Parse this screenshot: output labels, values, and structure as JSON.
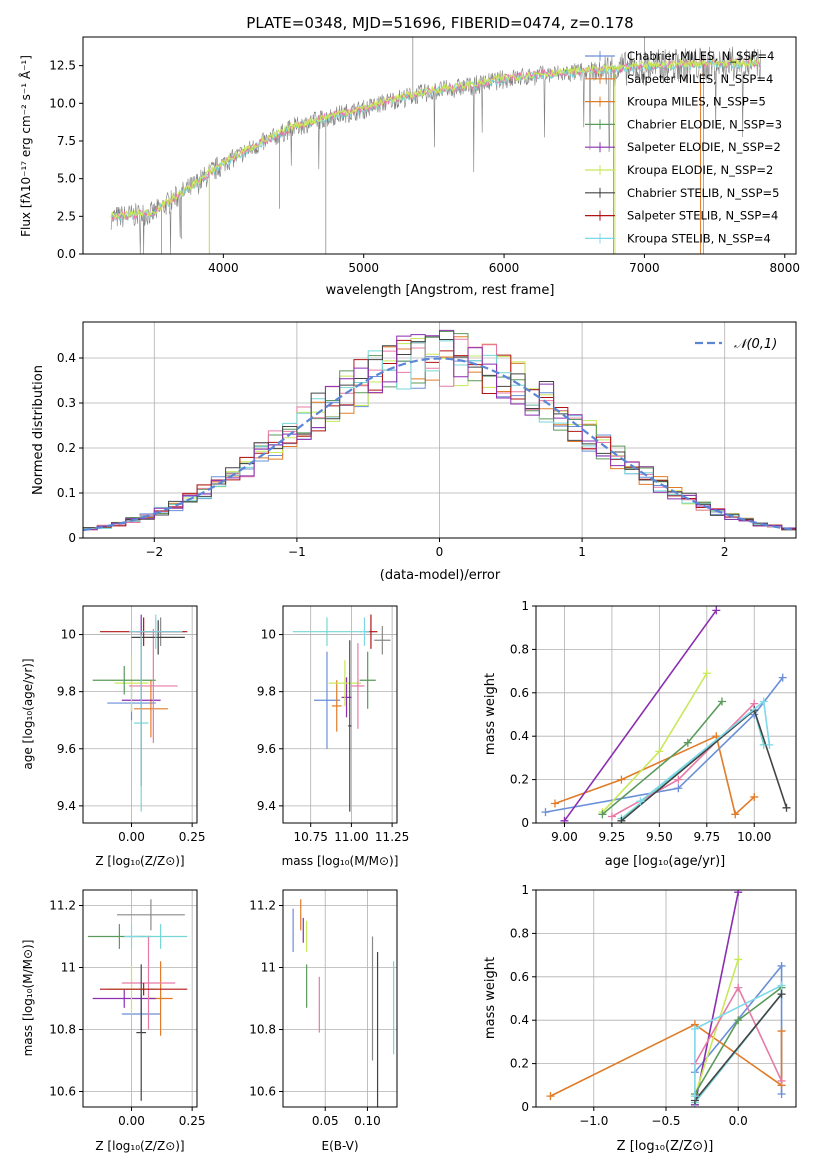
{
  "chart_data": [
    {
      "id": "spectrum",
      "type": "line",
      "title": "PLATE=0348, MJD=51696, FIBERID=0474, z=0.178",
      "xlabel": "wavelength [Angstrom, rest frame]",
      "ylabel": "Flux [fλ10⁻¹⁷ erg cm⁻² s⁻¹ Å⁻¹]",
      "xlim": [
        3000,
        8080
      ],
      "ylim": [
        0,
        14.4
      ],
      "xticks": [
        4000,
        5000,
        6000,
        7000,
        8000
      ],
      "yticks": [
        0.0,
        2.5,
        5.0,
        7.5,
        10.0,
        12.5
      ],
      "legend_position": "upper-right",
      "legend": [
        "Chabrier MILES, N_SSP=4",
        "Salpeter MILES, N_SSP=4",
        "Kroupa MILES, N_SSP=5",
        "Chabrier ELODIE, N_SSP=3",
        "Salpeter ELODIE, N_SSP=2",
        "Kroupa ELODIE, N_SSP=2",
        "Chabrier STELIB, N_SSP=5",
        "Salpeter STELIB, N_SSP=4",
        "Kroupa STELIB, N_SSP=4"
      ],
      "data_curve": {
        "x": [
          3200,
          3500,
          3800,
          4000,
          4200,
          4500,
          4800,
          5000,
          5200,
          5500,
          5800,
          6000,
          6300,
          6600,
          7000,
          7400,
          7800
        ],
        "y": [
          2.4,
          2.7,
          4.6,
          6.0,
          7.0,
          8.4,
          9.2,
          9.6,
          10.2,
          10.8,
          11.2,
          11.6,
          11.9,
          12.1,
          12.4,
          12.6,
          12.6
        ]
      }
    },
    {
      "id": "residuals",
      "type": "histogram",
      "xlabel": "(data-model)/error",
      "ylabel": "Normed distribution",
      "xlim": [
        -2.5,
        2.5
      ],
      "ylim": [
        0,
        0.48
      ],
      "xticks": [
        -2,
        -1,
        0,
        1,
        2
      ],
      "yticks": [
        0.0,
        0.1,
        0.2,
        0.3,
        0.4
      ],
      "legend": [
        "𝒩(0,1)"
      ],
      "legend_position": "upper-right",
      "grid": true
    },
    {
      "id": "age-vs-Z",
      "type": "scatter",
      "xlabel": "Z [log₁₀(Z/Z⊙)]",
      "ylabel": "age  [log₁₀(age/yr)]",
      "xlim": [
        -0.2,
        0.27
      ],
      "ylim": [
        9.34,
        10.1
      ],
      "xticks": [
        0.0,
        0.25
      ],
      "xtick_labels": [
        "0.00",
        "0.25"
      ],
      "yticks": [
        9.4,
        9.6,
        9.8,
        10.0
      ],
      "grid": true,
      "points": [
        {
          "x": 0.0,
          "y": 9.76,
          "xerr": 0.1,
          "yerr": 0.06
        },
        {
          "x": 0.08,
          "y": 9.74,
          "xerr": 0.07,
          "yerr": 0.1
        },
        {
          "x": 0.04,
          "y": 9.77,
          "xerr": 0.08,
          "yerr": 0.3
        },
        {
          "x": 0.0,
          "y": 9.83,
          "xerr": 0.07,
          "yerr": 0.1
        },
        {
          "x": -0.03,
          "y": 9.84,
          "xerr": 0.13,
          "yerr": 0.05
        },
        {
          "x": 0.09,
          "y": 9.82,
          "xerr": 0.1,
          "yerr": 0.2
        },
        {
          "x": 0.12,
          "y": 10.01,
          "xerr": 0.1,
          "yerr": 0.05
        },
        {
          "x": 0.11,
          "y": 9.99,
          "xerr": 0.11,
          "yerr": 0.06
        },
        {
          "x": 0.04,
          "y": 9.69,
          "xerr": 0.03,
          "yerr": 0.31
        },
        {
          "x": 0.05,
          "y": 10.01,
          "xerr": 0.18,
          "yerr": 0.05
        },
        {
          "x": 0.1,
          "y": 10.01,
          "xerr": 0.11,
          "yerr": 0.06
        }
      ]
    },
    {
      "id": "age-vs-mass",
      "type": "scatter",
      "xlabel": "mass [log₁₀(M/M⊙)]",
      "xlim": [
        10.58,
        11.28
      ],
      "ylim": [
        9.34,
        10.1
      ],
      "xticks": [
        10.75,
        11.0,
        11.25
      ],
      "xtick_labels": [
        "10.75",
        "11.00",
        "11.25"
      ],
      "yticks": [
        9.4,
        9.6,
        9.8,
        10.0
      ],
      "grid": true,
      "points": [
        {
          "x": 10.85,
          "y": 9.77,
          "xerr": 0.08,
          "yerr": 0.17
        },
        {
          "x": 10.91,
          "y": 9.75,
          "xerr": 0.03,
          "yerr": 0.09
        },
        {
          "x": 10.97,
          "y": 9.78,
          "xerr": 0.03,
          "yerr": 0.07
        },
        {
          "x": 10.96,
          "y": 9.83,
          "xerr": 0.1,
          "yerr": 0.08
        },
        {
          "x": 11.1,
          "y": 9.84,
          "xerr": 0.05,
          "yerr": 0.1
        },
        {
          "x": 11.04,
          "y": 9.82,
          "xerr": 0.04,
          "yerr": 0.15
        },
        {
          "x": 11.19,
          "y": 9.98,
          "xerr": 0.05,
          "yerr": 0.05
        },
        {
          "x": 10.99,
          "y": 9.68,
          "xerr": 0.01,
          "yerr": 0.3
        },
        {
          "x": 10.85,
          "y": 10.01,
          "xerr": 0.21,
          "yerr": 0.05
        },
        {
          "x": 11.12,
          "y": 10.01,
          "xerr": 0.04,
          "yerr": 0.06
        },
        {
          "x": 11.08,
          "y": 10.01,
          "xerr": 0.03,
          "yerr": 0.05
        }
      ]
    },
    {
      "id": "weight-vs-age",
      "type": "line",
      "xlabel": "age  [log₁₀(age/yr)]",
      "ylabel": "mass weight",
      "xlim": [
        8.85,
        10.22
      ],
      "ylim": [
        0,
        1
      ],
      "xticks": [
        9.0,
        9.25,
        9.5,
        9.75,
        10.0
      ],
      "xtick_labels": [
        "9.00",
        "9.25",
        "9.50",
        "9.75",
        "10.00"
      ],
      "yticks": [
        0.0,
        0.2,
        0.4,
        0.6,
        0.8,
        1.0
      ],
      "grid": true,
      "series": [
        {
          "x": [
            8.9,
            9.6,
            10.0,
            10.15
          ],
          "y": [
            0.05,
            0.16,
            0.5,
            0.67
          ]
        },
        {
          "x": [
            8.95,
            9.3,
            9.8,
            9.9,
            10.0
          ],
          "y": [
            0.09,
            0.2,
            0.4,
            0.04,
            0.12
          ]
        },
        {
          "x": [
            9.0,
            9.8
          ],
          "y": [
            0.01,
            0.98
          ]
        },
        {
          "x": [
            9.2,
            9.5,
            9.75
          ],
          "y": [
            0.05,
            0.33,
            0.69
          ]
        },
        {
          "x": [
            9.2,
            9.65,
            9.83
          ],
          "y": [
            0.04,
            0.37,
            0.56
          ]
        },
        {
          "x": [
            9.3,
            10.0,
            10.05
          ],
          "y": [
            0.02,
            0.52,
            0.36
          ]
        },
        {
          "x": [
            9.25,
            9.6,
            10.0
          ],
          "y": [
            0.03,
            0.2,
            0.55
          ]
        },
        {
          "x": [
            9.3,
            10.0,
            10.17
          ],
          "y": [
            0.01,
            0.52,
            0.07
          ]
        },
        {
          "x": [
            9.4,
            10.05,
            10.08
          ],
          "y": [
            0.1,
            0.56,
            0.36
          ]
        }
      ]
    },
    {
      "id": "mass-vs-Z",
      "type": "scatter",
      "xlabel": "Z [log₁₀(Z/Z⊙)]",
      "ylabel": "mass [log₁₀(M/M⊙)]",
      "xlim": [
        -0.2,
        0.27
      ],
      "ylim": [
        10.55,
        11.25
      ],
      "xticks": [
        0.0,
        0.25
      ],
      "xtick_labels": [
        "0.00",
        "0.25"
      ],
      "yticks": [
        10.6,
        10.8,
        11.0,
        11.2
      ],
      "grid": true,
      "points": [
        {
          "x": 0.04,
          "y": 10.85,
          "xerr": 0.08,
          "yerr": 0.06
        },
        {
          "x": 0.12,
          "y": 10.9,
          "xerr": 0.05,
          "yerr": 0.12
        },
        {
          "x": -0.03,
          "y": 10.9,
          "xerr": 0.13,
          "yerr": 0.03
        },
        {
          "x": 0.0,
          "y": 10.93,
          "xerr": 0.1,
          "yerr": 0.08
        },
        {
          "x": -0.05,
          "y": 11.1,
          "xerr": 0.13,
          "yerr": 0.04
        },
        {
          "x": 0.07,
          "y": 10.95,
          "xerr": 0.11,
          "yerr": 0.15
        },
        {
          "x": 0.08,
          "y": 11.17,
          "xerr": 0.14,
          "yerr": 0.05
        },
        {
          "x": 0.04,
          "y": 10.79,
          "xerr": 0.02,
          "yerr": 0.22
        },
        {
          "x": 0.12,
          "y": 11.1,
          "xerr": 0.11,
          "yerr": 0.04
        },
        {
          "x": 0.05,
          "y": 10.93,
          "xerr": 0.18,
          "yerr": 0.02
        },
        {
          "x": 0.0,
          "y": 11.1,
          "xerr": 0.03,
          "yerr": 0.04
        }
      ]
    },
    {
      "id": "mass-vs-EBV",
      "type": "scatter",
      "xlabel": "E(B-V)",
      "xlim": [
        0.0,
        0.135
      ],
      "ylim": [
        10.55,
        11.25
      ],
      "xticks": [
        0.05,
        0.1
      ],
      "xtick_labels": [
        "0.05",
        "0.10"
      ],
      "yticks": [
        10.6,
        10.8,
        11.0,
        11.2
      ],
      "grid": true,
      "points": [
        {
          "x": 0.012,
          "y": 11.12,
          "yerr": 0.07
        },
        {
          "x": 0.021,
          "y": 11.17,
          "yerr": 0.05
        },
        {
          "x": 0.024,
          "y": 11.12,
          "yerr": 0.04
        },
        {
          "x": 0.028,
          "y": 11.1,
          "yerr": 0.05
        },
        {
          "x": 0.028,
          "y": 10.94,
          "yerr": 0.07
        },
        {
          "x": 0.043,
          "y": 10.88,
          "yerr": 0.09
        },
        {
          "x": 0.106,
          "y": 10.9,
          "yerr": 0.2
        },
        {
          "x": 0.112,
          "y": 10.8,
          "yerr": 0.25
        },
        {
          "x": 0.131,
          "y": 10.87,
          "yerr": 0.15
        }
      ]
    },
    {
      "id": "weight-vs-Z",
      "type": "line",
      "xlabel": "Z [log₁₀(Z/Z⊙)]",
      "ylabel": "mass weight",
      "xlim": [
        -1.4,
        0.4
      ],
      "ylim": [
        0,
        1
      ],
      "xticks": [
        -1.0,
        -0.5,
        0.0
      ],
      "xtick_labels": [
        "−1.0",
        "−0.5",
        "0.0"
      ],
      "yticks": [
        0.0,
        0.2,
        0.4,
        0.6,
        0.8,
        1.0
      ],
      "grid": true,
      "series": [
        {
          "x": [
            -0.3,
            0.3,
            0.3
          ],
          "y": [
            0.16,
            0.65,
            0.06
          ]
        },
        {
          "x": [
            -1.3,
            -0.3,
            0.3,
            0.3
          ],
          "y": [
            0.05,
            0.38,
            0.1,
            0.35
          ]
        },
        {
          "x": [
            -0.3,
            0.0
          ],
          "y": [
            0.01,
            0.99
          ]
        },
        {
          "x": [
            -0.3,
            0.0
          ],
          "y": [
            0.05,
            0.68
          ]
        },
        {
          "x": [
            -0.3,
            0.0,
            0.3
          ],
          "y": [
            0.06,
            0.4,
            0.55
          ]
        },
        {
          "x": [
            -0.3,
            0.3
          ],
          "y": [
            0.02,
            0.52
          ]
        },
        {
          "x": [
            -0.3,
            0.0,
            0.3
          ],
          "y": [
            0.2,
            0.55,
            0.12
          ]
        },
        {
          "x": [
            -0.3,
            0.3
          ],
          "y": [
            0.03,
            0.52
          ]
        },
        {
          "x": [
            -0.3,
            -0.3,
            0.3
          ],
          "y": [
            0.05,
            0.36,
            0.56
          ]
        }
      ]
    }
  ],
  "colors": [
    "#6a8fd8",
    "#e07b28",
    "#8b2fb0",
    "#c8e85a",
    "#5a9a5a",
    "#e77aa6",
    "#8a8a8a",
    "#444444",
    "#76d6d6",
    "#b01515",
    "#7fd8e8"
  ],
  "legend_colors": [
    "#6a8fd8",
    "#e07b28",
    "#e07b28",
    "#5a9a5a",
    "#8b2fb0",
    "#c8e85a",
    "#444444",
    "#b01515",
    "#7fd8e8"
  ]
}
